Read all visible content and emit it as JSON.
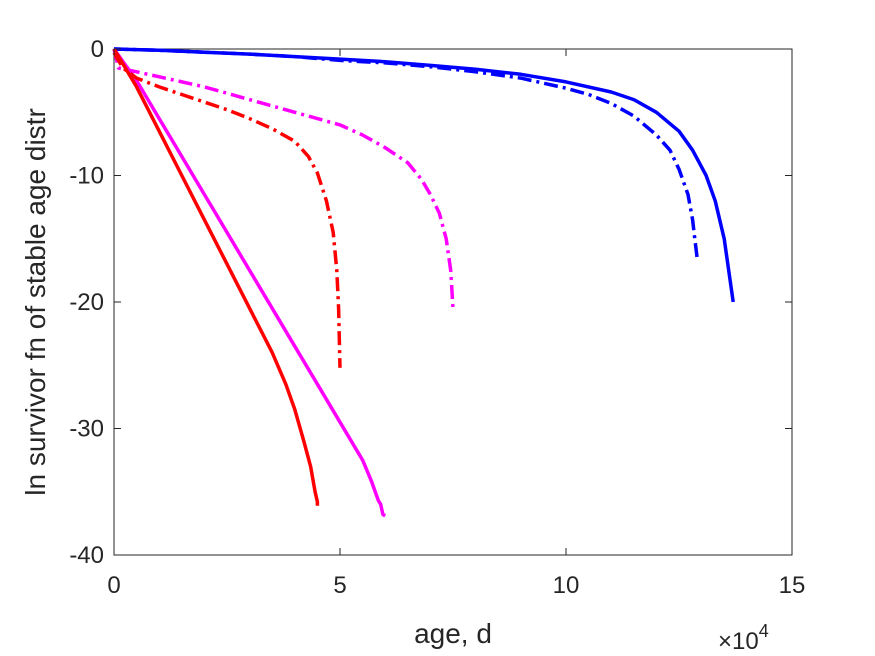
{
  "chart_data": {
    "type": "line",
    "xlabel": "age, d",
    "ylabel": "ln survivor fn of stable age distr",
    "x_multiplier_label": {
      "base": "×10",
      "exponent": "4"
    },
    "xlim": [
      0,
      15
    ],
    "ylim": [
      -40,
      0
    ],
    "x_ticks": [
      0,
      5,
      10,
      15
    ],
    "y_ticks": [
      0,
      -10,
      -20,
      -30,
      -40
    ],
    "grid": false,
    "legend": "none",
    "series": [
      {
        "color": "#0000FF",
        "style": "solid",
        "points": [
          [
            0,
            0
          ],
          [
            1,
            -0.1
          ],
          [
            2,
            -0.25
          ],
          [
            3,
            -0.4
          ],
          [
            4,
            -0.6
          ],
          [
            5,
            -0.8
          ],
          [
            6,
            -1.0
          ],
          [
            7,
            -1.3
          ],
          [
            8,
            -1.6
          ],
          [
            9,
            -2.0
          ],
          [
            10,
            -2.6
          ],
          [
            11,
            -3.4
          ],
          [
            11.5,
            -4.0
          ],
          [
            12,
            -5.0
          ],
          [
            12.5,
            -6.5
          ],
          [
            12.8,
            -8.0
          ],
          [
            13.1,
            -10.0
          ],
          [
            13.3,
            -12.0
          ],
          [
            13.5,
            -15.0
          ],
          [
            13.6,
            -17.5
          ],
          [
            13.7,
            -20.0
          ]
        ]
      },
      {
        "color": "#0000FF",
        "style": "dashdot",
        "points": [
          [
            0,
            0
          ],
          [
            1,
            -0.1
          ],
          [
            2,
            -0.25
          ],
          [
            3,
            -0.4
          ],
          [
            4,
            -0.6
          ],
          [
            5,
            -0.9
          ],
          [
            6,
            -1.1
          ],
          [
            7,
            -1.4
          ],
          [
            8,
            -1.8
          ],
          [
            9,
            -2.3
          ],
          [
            10,
            -3.1
          ],
          [
            10.5,
            -3.6
          ],
          [
            11,
            -4.3
          ],
          [
            11.5,
            -5.3
          ],
          [
            12,
            -6.8
          ],
          [
            12.3,
            -8.0
          ],
          [
            12.5,
            -9.5
          ],
          [
            12.7,
            -11.5
          ],
          [
            12.8,
            -13.5
          ],
          [
            12.85,
            -15.0
          ],
          [
            12.9,
            -16.5
          ]
        ]
      },
      {
        "color": "#FF00FF",
        "style": "solid",
        "points": [
          [
            0,
            0
          ],
          [
            0.5,
            -2.5
          ],
          [
            1,
            -5.5
          ],
          [
            1.5,
            -8.5
          ],
          [
            2,
            -11.5
          ],
          [
            2.5,
            -14.5
          ],
          [
            3,
            -17.5
          ],
          [
            3.5,
            -20.5
          ],
          [
            4,
            -23.5
          ],
          [
            4.5,
            -26.5
          ],
          [
            5,
            -29.5
          ],
          [
            5.5,
            -32.5
          ],
          [
            5.7,
            -34.2
          ],
          [
            5.85,
            -35.7
          ],
          [
            5.9,
            -36.0
          ],
          [
            5.95,
            -36.8
          ],
          [
            6.0,
            -36.9
          ]
        ]
      },
      {
        "color": "#FF00FF",
        "style": "dashdot",
        "points": [
          [
            0,
            0
          ],
          [
            0.1,
            -1.5
          ],
          [
            0.5,
            -1.8
          ],
          [
            1,
            -2.2
          ],
          [
            2,
            -3.0
          ],
          [
            3,
            -4.0
          ],
          [
            4,
            -5.0
          ],
          [
            5,
            -6.0
          ],
          [
            5.5,
            -6.8
          ],
          [
            6,
            -7.8
          ],
          [
            6.5,
            -9.0
          ],
          [
            6.8,
            -10.3
          ],
          [
            7.0,
            -11.5
          ],
          [
            7.2,
            -13.0
          ],
          [
            7.35,
            -15.0
          ],
          [
            7.45,
            -17.5
          ],
          [
            7.5,
            -20.5
          ]
        ]
      },
      {
        "color": "#FF0000",
        "style": "solid",
        "points": [
          [
            0,
            0
          ],
          [
            0.5,
            -3.0
          ],
          [
            1,
            -6.5
          ],
          [
            1.5,
            -10.0
          ],
          [
            2,
            -13.5
          ],
          [
            2.5,
            -17.0
          ],
          [
            3,
            -20.5
          ],
          [
            3.5,
            -24.0
          ],
          [
            3.8,
            -26.5
          ],
          [
            4.0,
            -28.5
          ],
          [
            4.2,
            -31.0
          ],
          [
            4.35,
            -33.0
          ],
          [
            4.45,
            -35.0
          ],
          [
            4.5,
            -35.8
          ],
          [
            4.5,
            -36.1
          ]
        ]
      },
      {
        "color": "#FF0000",
        "style": "dashdot",
        "points": [
          [
            0,
            -0.3
          ],
          [
            0.2,
            -1.5
          ],
          [
            0.5,
            -2.3
          ],
          [
            1,
            -3.0
          ],
          [
            1.5,
            -3.6
          ],
          [
            2,
            -4.2
          ],
          [
            2.5,
            -4.8
          ],
          [
            3,
            -5.5
          ],
          [
            3.5,
            -6.3
          ],
          [
            4,
            -7.3
          ],
          [
            4.3,
            -8.5
          ],
          [
            4.5,
            -9.8
          ],
          [
            4.7,
            -12.0
          ],
          [
            4.85,
            -14.5
          ],
          [
            4.93,
            -17.5
          ],
          [
            4.97,
            -20.5
          ],
          [
            5.0,
            -25.2
          ]
        ]
      }
    ]
  }
}
